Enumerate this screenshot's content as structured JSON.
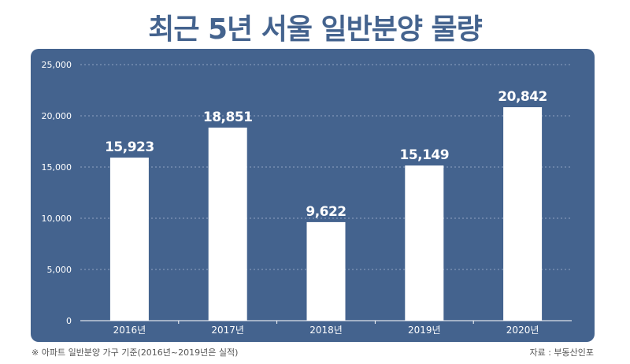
{
  "title": "최근 5년 서울 일반분양 물량",
  "footnote": "※ 아파트 일반분양 가구 기준(2016년~2019년은 실적)",
  "source": "자료 : 부동산인포",
  "colors": {
    "title": "#44638e",
    "panel": "#44638e",
    "bar": "#ffffff",
    "text_on_panel": "#ffffff",
    "grid": "#8fa3c2"
  },
  "chart_data": {
    "type": "bar",
    "categories": [
      "2016년",
      "2017년",
      "2018년",
      "2019년",
      "2020년"
    ],
    "values": [
      15923,
      18851,
      9622,
      15149,
      20842
    ],
    "value_labels": [
      "15,923",
      "18,851",
      "9,622",
      "15,149",
      "20,842"
    ],
    "y_ticks": [
      0,
      5000,
      10000,
      15000,
      20000,
      25000
    ],
    "y_tick_labels": [
      "0",
      "5,000",
      "10,000",
      "15,000",
      "20,000",
      "25,000"
    ],
    "ylim": [
      0,
      25000
    ],
    "grid": true,
    "title": "최근 5년 서울 일반분양 물량"
  }
}
